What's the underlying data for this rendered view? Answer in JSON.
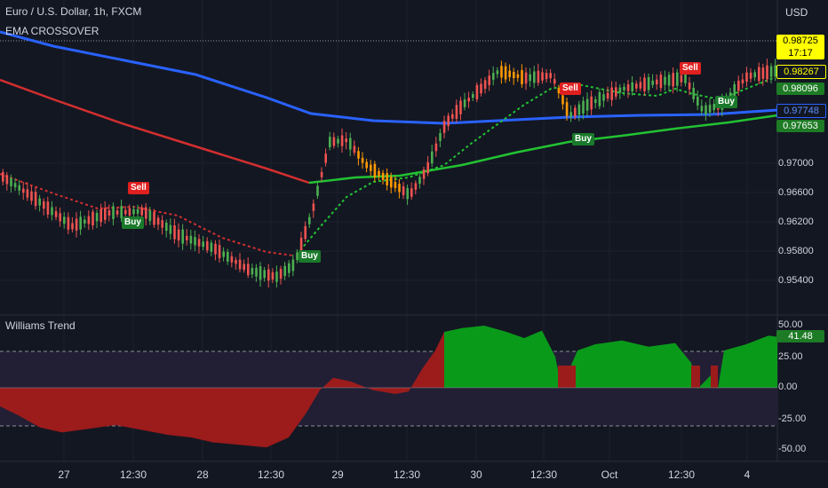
{
  "header": {
    "symbol": "Euro / U.S. Dollar, 1h, FXCM",
    "indicator1": "EMA CROSSOVER",
    "currency": "USD"
  },
  "price_tags": {
    "last_price": "0.98725",
    "countdown": "17:17",
    "t1": "0.98267",
    "t2": "0.98096",
    "t3": "0.97748",
    "t4": "0.97653"
  },
  "price_axis": [
    "0.97000",
    "0.96600",
    "0.96200",
    "0.95800",
    "0.95400"
  ],
  "oscillator": {
    "title": "Williams Trend",
    "value": "41.48",
    "axis": [
      "50.00",
      "25.00",
      "0.00",
      "-25.00",
      "-50.00"
    ]
  },
  "time_axis": [
    "27",
    "12:30",
    "28",
    "12:30",
    "29",
    "12:30",
    "30",
    "12:30",
    "Oct",
    "12:30",
    "4"
  ],
  "signals": [
    {
      "label": "Sell",
      "type": "sell"
    },
    {
      "label": "Buy",
      "type": "buy"
    },
    {
      "label": "Buy",
      "type": "buy"
    },
    {
      "label": "Sell",
      "type": "sell"
    },
    {
      "label": "Buy",
      "type": "buy"
    },
    {
      "label": "Sell",
      "type": "sell"
    },
    {
      "label": "Buy",
      "type": "buy"
    }
  ],
  "colors": {
    "background": "#131722",
    "ema_fast": "#2962ff",
    "ema_slow_red": "#d32f2f",
    "ema_slow_green": "#22c232",
    "candle_up": "#4caf50",
    "candle_down": "#ef5350",
    "bull_fill": "#0a9a1a",
    "bear_fill": "#9c1b1b"
  }
}
